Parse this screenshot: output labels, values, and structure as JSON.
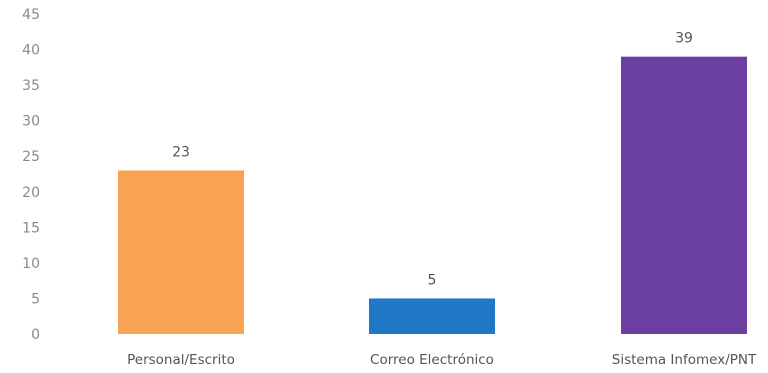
{
  "chart_data": {
    "type": "bar",
    "categories": [
      "Personal/Escrito",
      "Correo Electrónico",
      "Sistema Infomex/PNT"
    ],
    "values": [
      23,
      5,
      39
    ],
    "data_labels": [
      "23",
      "5",
      "39"
    ],
    "ylim": [
      0,
      45
    ],
    "yticks": [
      0,
      5,
      10,
      15,
      20,
      25,
      30,
      35,
      40,
      45
    ],
    "ytick_labels": [
      "0",
      "5",
      "10",
      "15",
      "20",
      "25",
      "30",
      "35",
      "40",
      "45"
    ],
    "bar_colors": [
      "#f8a253",
      "#1f78c8",
      "#6a3fa0"
    ],
    "grid": false,
    "legend": "none"
  }
}
